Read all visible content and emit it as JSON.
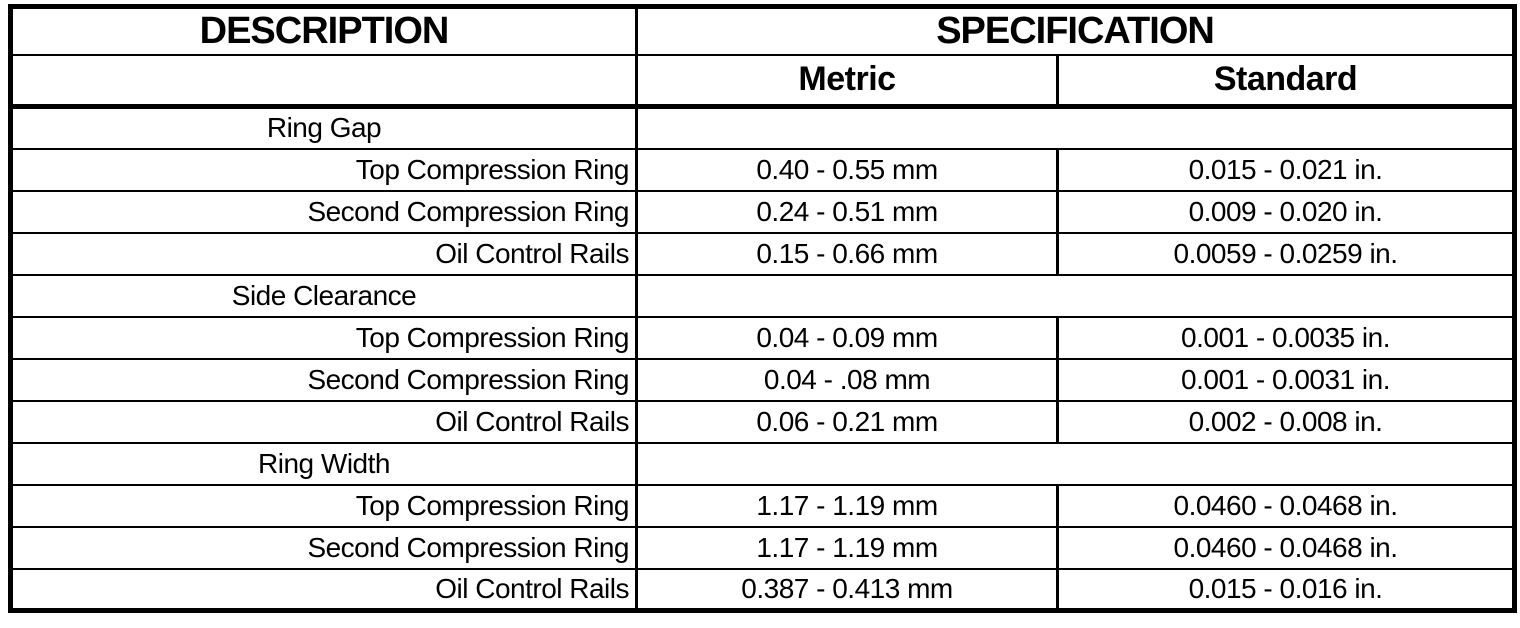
{
  "table": {
    "header": {
      "description": "DESCRIPTION",
      "specification": "SPECIFICATION",
      "metric": "Metric",
      "standard": "Standard"
    },
    "sections": [
      {
        "title": "Ring Gap",
        "rows": [
          {
            "label": "Top Compression Ring",
            "metric": "0.40 - 0.55 mm",
            "standard": "0.015 - 0.021 in."
          },
          {
            "label": "Second Compression Ring",
            "metric": "0.24 - 0.51 mm",
            "standard": "0.009 - 0.020 in."
          },
          {
            "label": "Oil Control Rails",
            "metric": "0.15 - 0.66 mm",
            "standard": "0.0059 - 0.0259 in."
          }
        ]
      },
      {
        "title": "Side Clearance",
        "rows": [
          {
            "label": "Top Compression Ring",
            "metric": "0.04 - 0.09 mm",
            "standard": "0.001 - 0.0035 in."
          },
          {
            "label": "Second Compression Ring",
            "metric": "0.04 - .08 mm",
            "standard": "0.001 - 0.0031 in."
          },
          {
            "label": "Oil Control Rails",
            "metric": "0.06 - 0.21 mm",
            "standard": "0.002 - 0.008 in."
          }
        ]
      },
      {
        "title": "Ring Width",
        "rows": [
          {
            "label": "Top Compression Ring",
            "metric": "1.17 - 1.19 mm",
            "standard": "0.0460 - 0.0468 in."
          },
          {
            "label": "Second Compression Ring",
            "metric": "1.17 - 1.19 mm",
            "standard": "0.0460 - 0.0468 in."
          },
          {
            "label": "Oil Control Rails",
            "metric": "0.387 - 0.413 mm",
            "standard": "0.015 - 0.016 in."
          }
        ]
      }
    ]
  }
}
